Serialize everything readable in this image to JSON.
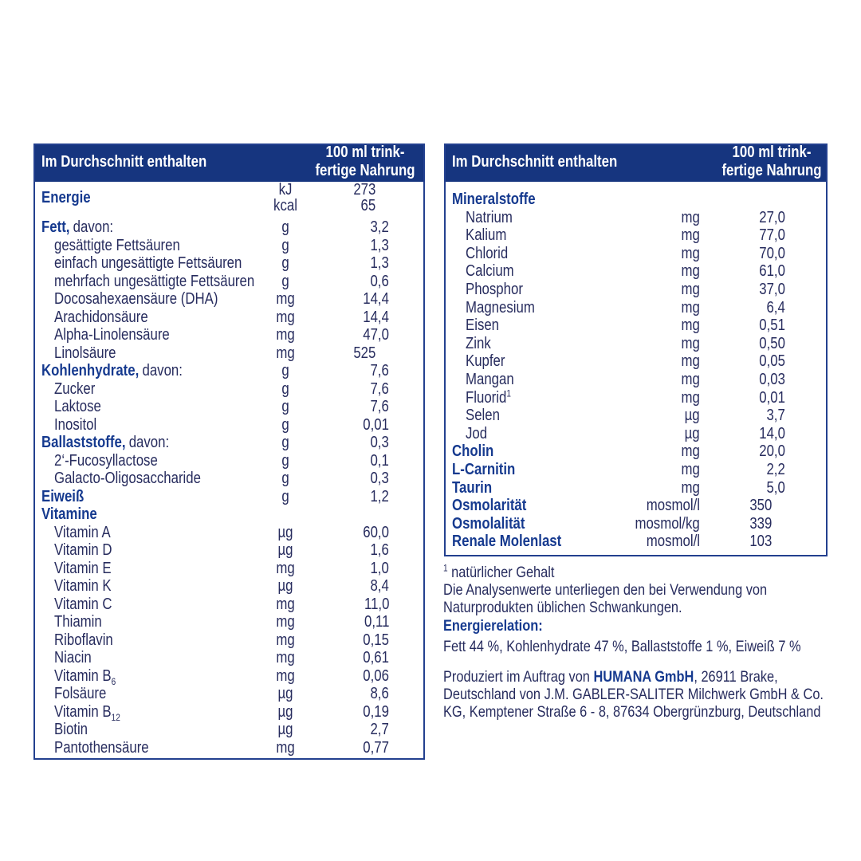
{
  "left": {
    "header": {
      "title": "Im Durchschnitt enthalten",
      "column": [
        "100 ml trink-",
        "fertige Nahrung"
      ]
    },
    "sections": [
      {
        "heading": "Energie",
        "units": [
          "kJ",
          "kcal"
        ],
        "values": [
          "273",
          "65"
        ]
      },
      {
        "heading": "Fett,",
        "note": "davon:",
        "unit": "g",
        "value": "3,2",
        "items": [
          {
            "label": "gesättigte Fettsäuren",
            "unit": "g",
            "value": "1,3"
          },
          {
            "label": "einfach ungesättigte Fettsäuren",
            "unit": "g",
            "value": "1,3"
          },
          {
            "label": "mehrfach ungesättigte Fettsäuren",
            "unit": "g",
            "value": "0,6"
          },
          {
            "label": "Docosahexaensäure (DHA)",
            "unit": "mg",
            "value": "14,4"
          },
          {
            "label": "Arachidonsäure",
            "unit": "mg",
            "value": "14,4"
          },
          {
            "label": "Alpha-Linolensäure",
            "unit": "mg",
            "value": "47,0"
          },
          {
            "label": "Linolsäure",
            "unit": "mg",
            "value": "525"
          }
        ]
      },
      {
        "heading": "Kohlenhydrate,",
        "note": "davon:",
        "unit": "g",
        "value": "7,6",
        "items": [
          {
            "label": "Zucker",
            "unit": "g",
            "value": "7,6"
          },
          {
            "label": "Laktose",
            "unit": "g",
            "value": "7,6"
          },
          {
            "label": "Inositol",
            "unit": "g",
            "value": "0,01"
          }
        ]
      },
      {
        "heading": "Ballaststoffe,",
        "note": "davon:",
        "unit": "g",
        "value": "0,3",
        "items": [
          {
            "label": "2‘-Fucosyllactose",
            "unit": "g",
            "value": "0,1"
          },
          {
            "label": "Galacto-Oligosaccharide",
            "unit": "g",
            "value": "0,3"
          }
        ]
      },
      {
        "heading": "Eiweiß",
        "unit": "g",
        "value": "1,2"
      },
      {
        "heading": "Vitamine",
        "items": [
          {
            "label": "Vitamin A",
            "unit": "µg",
            "value": "60,0"
          },
          {
            "label": "Vitamin D",
            "unit": "µg",
            "value": "1,6"
          },
          {
            "label": "Vitamin E",
            "unit": "mg",
            "value": "1,0"
          },
          {
            "label": "Vitamin K",
            "unit": "µg",
            "value": "8,4"
          },
          {
            "label": "Vitamin C",
            "unit": "mg",
            "value": "11,0"
          },
          {
            "label": "Thiamin",
            "unit": "mg",
            "value": "0,11"
          },
          {
            "label": "Riboflavin",
            "unit": "mg",
            "value": "0,15"
          },
          {
            "label": "Niacin",
            "unit": "mg",
            "value": "0,61"
          },
          {
            "label": "Vitamin B",
            "sub": "6",
            "unit": "mg",
            "value": "0,06"
          },
          {
            "label": "Folsäure",
            "unit": "µg",
            "value": "8,6"
          },
          {
            "label": "Vitamin B",
            "sub": "12",
            "unit": "µg",
            "value": "0,19"
          },
          {
            "label": "Biotin",
            "unit": "µg",
            "value": "2,7"
          },
          {
            "label": "Pantothensäure",
            "unit": "mg",
            "value": "0,77"
          }
        ]
      }
    ]
  },
  "right": {
    "header": {
      "title": "Im Durchschnitt enthalten",
      "column": [
        "100 ml trink-",
        "fertige Nahrung"
      ]
    },
    "sections": [
      {
        "heading": "Mineralstoffe",
        "items": [
          {
            "label": "Natrium",
            "unit": "mg",
            "value": "27,0"
          },
          {
            "label": "Kalium",
            "unit": "mg",
            "value": "77,0"
          },
          {
            "label": "Chlorid",
            "unit": "mg",
            "value": "70,0"
          },
          {
            "label": "Calcium",
            "unit": "mg",
            "value": "61,0"
          },
          {
            "label": "Phosphor",
            "unit": "mg",
            "value": "37,0"
          },
          {
            "label": "Magnesium",
            "unit": "mg",
            "value": "6,4"
          },
          {
            "label": "Eisen",
            "unit": "mg",
            "value": "0,51"
          },
          {
            "label": "Zink",
            "unit": "mg",
            "value": "0,50"
          },
          {
            "label": "Kupfer",
            "unit": "mg",
            "value": "0,05"
          },
          {
            "label": "Mangan",
            "unit": "mg",
            "value": "0,03"
          },
          {
            "label": "Fluorid",
            "sup": "1",
            "unit": "mg",
            "value": "0,01"
          },
          {
            "label": "Selen",
            "unit": "µg",
            "value": "3,7"
          },
          {
            "label": "Jod",
            "unit": "µg",
            "value": "14,0"
          }
        ]
      },
      {
        "heading": "Cholin",
        "unit": "mg",
        "value": "20,0"
      },
      {
        "heading": "L-Carnitin",
        "unit": "mg",
        "value": "2,2"
      },
      {
        "heading": "Taurin",
        "unit": "mg",
        "value": "5,0"
      },
      {
        "heading": "Osmolarität",
        "unit": "mosmol/l",
        "value": "350"
      },
      {
        "heading": "Osmolalität",
        "unit": "mosmol/kg",
        "value": "339"
      },
      {
        "heading": "Renale Molenlast",
        "unit": "mosmol/l",
        "value": "103"
      }
    ]
  },
  "notes": {
    "footnote": {
      "mark": "1",
      "text": "natürlicher Gehalt"
    },
    "analysis": "Die Analysenwerte unterliegen den bei Verwendung von Naturprodukten üblichen Schwankungen.",
    "energy_title": "Energierelation:",
    "energy_text": "Fett 44 %, Kohlenhydrate 47 %, Ballaststoffe 1 %, Eiweiß 7 %",
    "producer": {
      "before": "Produziert im Auftrag von ",
      "company": "HUMANA GmbH",
      "after": ", 26911 Brake, Deutschland von J.M. GABLER-SALITER Milchwerk GmbH & Co. KG, Kemptener Straße 6 - 8, 87634 Obergrünzburg, Deutschland"
    }
  }
}
